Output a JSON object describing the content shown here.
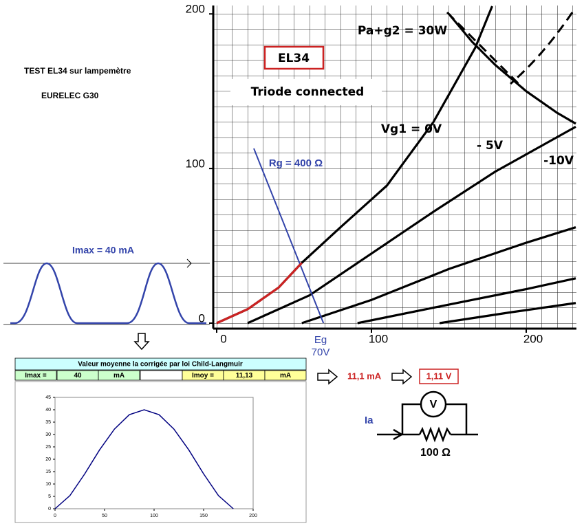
{
  "header": {
    "line1": "TEST  EL34 sur lampemètre",
    "line2": "EURELEC  G30"
  },
  "tube_chart": {
    "type": "line",
    "title": "EL34",
    "subtitle": "Triode connected",
    "xlim": [
      -2,
      232
    ],
    "ylim": [
      -4,
      205
    ],
    "xticks": [
      0,
      100,
      200
    ],
    "yticks": [
      0,
      100,
      200
    ],
    "series": [
      {
        "name": "Vg1 = 0V",
        "color": "#000000",
        "x": [
          0,
          20,
          40,
          55,
          80,
          110,
          140,
          167,
          178
        ],
        "values": [
          0,
          9,
          23,
          39,
          62,
          89,
          130,
          178,
          205
        ]
      },
      {
        "name": "- 5V",
        "color": "#000000",
        "x": [
          20,
          60,
          100,
          140,
          180,
          232
        ],
        "values": [
          0,
          18,
          45,
          72,
          98,
          127
        ]
      },
      {
        "name": "-10V",
        "color": "#000000",
        "x": [
          55,
          100,
          150,
          200,
          232
        ],
        "values": [
          0,
          15,
          35,
          52,
          62
        ]
      },
      {
        "color": "#000000",
        "x": [
          91,
          150,
          200,
          232
        ],
        "values": [
          0,
          12,
          22,
          29
        ]
      },
      {
        "color": "#000000",
        "x": [
          144,
          190,
          232
        ],
        "values": [
          0,
          7,
          13
        ]
      },
      {
        "name": "Pa+g2 = 30W",
        "color": "#000000",
        "x": [
          150,
          165,
          180,
          200,
          220,
          232
        ],
        "values": [
          200,
          182,
          167,
          150,
          136,
          129
        ]
      },
      {
        "name": "Rg = 400 Ω",
        "color": "#3344aa",
        "x": [
          24,
          69
        ],
        "values": [
          113,
          0
        ]
      },
      {
        "color": "#cc2222",
        "x": [
          0,
          20,
          40,
          55
        ],
        "values": [
          0,
          9,
          23,
          39
        ]
      }
    ],
    "annotation": {
      "label": "Eg",
      "value": "70V"
    }
  },
  "waveform": {
    "label": "Imax = 40 mA"
  },
  "table": {
    "title": "Valeur moyenne la corrigée par loi Child-Langmuir",
    "cells": [
      "Imax =",
      "40",
      "mA",
      "Imoy =",
      "11,13",
      "mA"
    ]
  },
  "excel_chart": {
    "type": "line",
    "color": "#000080",
    "x": [
      0,
      15,
      30,
      45,
      60,
      75,
      90,
      105,
      120,
      135,
      150,
      165,
      180
    ],
    "values": [
      0,
      5.3,
      14.1,
      23.8,
      32.2,
      38,
      40,
      38,
      32.2,
      23.8,
      14.1,
      5.3,
      0
    ],
    "xlim": [
      0,
      200
    ],
    "ylim": [
      0,
      45
    ],
    "xticks": [
      0,
      50,
      100,
      150,
      200
    ],
    "yticks": [
      0,
      5,
      10,
      15,
      20,
      25,
      30,
      35,
      40,
      45
    ]
  },
  "result": {
    "current": "11,1 mA",
    "voltage": "1,11 V"
  },
  "circuit": {
    "meter": "V",
    "input": "Ia",
    "resistor": "100 Ω"
  }
}
